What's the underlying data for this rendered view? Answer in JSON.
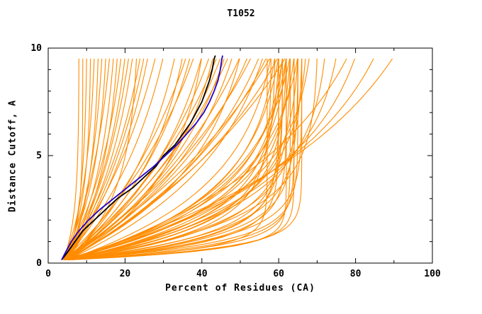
{
  "chart_data": {
    "type": "line",
    "title": "T1052",
    "xlabel": "Percent of Residues (CA)",
    "ylabel": "Distance Cutoff, A",
    "xlim": [
      0,
      100
    ],
    "ylim": [
      0,
      10
    ],
    "x_ticks": [
      0,
      20,
      40,
      60,
      80,
      100
    ],
    "x_minor_ticks": [
      10,
      30,
      50,
      70,
      90
    ],
    "y_ticks": [
      0,
      5,
      10
    ],
    "y_minor_ticks": [
      1,
      2,
      3,
      4,
      6,
      7,
      8,
      9
    ],
    "grid": false,
    "legend": "none",
    "colors": {
      "background": "#ffffff",
      "axis": "#000000",
      "models": "#ff8c00",
      "model_black": "#000000",
      "model_blue": "#2200cc"
    },
    "highlight_series": [
      {
        "name": "black-model-curve",
        "color_key": "model_black",
        "points": [
          [
            3.5,
            0.15
          ],
          [
            5,
            0.5
          ],
          [
            7,
            1
          ],
          [
            9,
            1.5
          ],
          [
            12,
            2
          ],
          [
            15,
            2.5
          ],
          [
            18,
            3
          ],
          [
            22,
            3.5
          ],
          [
            25,
            4
          ],
          [
            28,
            4.5
          ],
          [
            30,
            5
          ],
          [
            33,
            5.5
          ],
          [
            35,
            6
          ],
          [
            37,
            6.5
          ],
          [
            38.5,
            7
          ],
          [
            40,
            7.5
          ],
          [
            41,
            8
          ],
          [
            42,
            8.5
          ],
          [
            42.7,
            9
          ],
          [
            43.2,
            9.5
          ],
          [
            43.5,
            9.65
          ]
        ]
      },
      {
        "name": "blue-model-curve",
        "color_key": "model_blue",
        "points": [
          [
            3.5,
            0.15
          ],
          [
            4.5,
            0.5
          ],
          [
            6,
            1
          ],
          [
            8,
            1.5
          ],
          [
            10.5,
            2
          ],
          [
            13.5,
            2.5
          ],
          [
            17,
            3
          ],
          [
            20.5,
            3.5
          ],
          [
            24,
            4
          ],
          [
            27.5,
            4.5
          ],
          [
            30.5,
            5
          ],
          [
            33.5,
            5.5
          ],
          [
            36,
            6
          ],
          [
            38.5,
            6.5
          ],
          [
            40.5,
            7
          ],
          [
            42,
            7.5
          ],
          [
            43.2,
            8
          ],
          [
            44.2,
            8.5
          ],
          [
            44.8,
            9
          ],
          [
            45.2,
            9.5
          ],
          [
            45.4,
            9.65
          ]
        ]
      }
    ],
    "model_curves": {
      "color_key": "models",
      "param_format": "[x_percent_at_cutoff_10, curvature_tau, x_percent_at_cutoff_0]",
      "curves": [
        [
          60,
          1.0,
          4
        ],
        [
          61,
          1.2,
          5
        ],
        [
          62,
          0.9,
          4
        ],
        [
          63,
          1.5,
          5
        ],
        [
          64,
          1.1,
          6
        ],
        [
          65,
          1.3,
          4
        ],
        [
          60,
          2.0,
          5
        ],
        [
          61,
          2.4,
          4
        ],
        [
          62,
          1.8,
          6
        ],
        [
          63,
          2.2,
          5
        ],
        [
          64,
          2.6,
          4
        ],
        [
          65,
          2.1,
          5
        ],
        [
          59,
          1.6,
          4
        ],
        [
          58,
          1.4,
          5
        ],
        [
          66,
          1.7,
          5
        ],
        [
          67,
          2.3,
          6
        ],
        [
          62,
          3.0,
          4
        ],
        [
          63,
          3.4,
          5
        ],
        [
          61,
          2.8,
          5
        ],
        [
          60,
          3.2,
          6
        ],
        [
          64,
          0.7,
          5
        ],
        [
          65,
          0.8,
          4
        ],
        [
          63,
          0.6,
          5
        ],
        [
          66,
          1.0,
          5
        ],
        [
          59,
          2.9,
          4
        ],
        [
          58,
          3.5,
          5
        ],
        [
          62,
          2.5,
          4
        ],
        [
          61,
          1.1,
          6
        ],
        [
          60,
          0.8,
          5
        ],
        [
          65,
          3.1,
          4
        ],
        [
          57,
          0.5,
          4
        ],
        [
          62,
          0.45,
          5
        ],
        [
          66,
          0.55,
          5
        ],
        [
          64,
          0.5,
          6
        ],
        [
          35,
          5,
          4
        ],
        [
          40,
          6,
          5
        ],
        [
          45,
          7,
          4
        ],
        [
          50,
          8,
          5
        ],
        [
          55,
          6.5,
          5
        ],
        [
          48,
          5.5,
          4
        ],
        [
          42,
          7.5,
          5
        ],
        [
          38,
          8.5,
          4
        ],
        [
          52,
          7,
          5
        ],
        [
          58,
          9,
          4
        ],
        [
          60,
          8,
          5
        ],
        [
          62,
          9.5,
          5
        ],
        [
          46,
          6,
          4
        ],
        [
          36,
          9,
          5
        ],
        [
          30,
          7,
          4
        ],
        [
          33,
          6,
          5
        ],
        [
          44,
          8,
          4
        ],
        [
          56,
          5,
          5
        ],
        [
          50,
          4.5,
          4
        ],
        [
          40,
          4,
          5
        ],
        [
          47,
          9,
          5
        ],
        [
          53,
          8.5,
          4
        ],
        [
          57,
          7.5,
          5
        ],
        [
          43,
          5,
          4
        ],
        [
          37,
          6.5,
          5
        ],
        [
          8,
          2,
          4
        ],
        [
          10,
          3,
          5
        ],
        [
          12,
          4,
          4
        ],
        [
          14,
          5,
          5
        ],
        [
          16,
          6,
          4
        ],
        [
          18,
          4.5,
          5
        ],
        [
          20,
          5.5,
          4
        ],
        [
          22,
          6.5,
          5
        ],
        [
          24,
          7,
          4
        ],
        [
          26,
          7.5,
          5
        ],
        [
          11,
          2.5,
          4
        ],
        [
          13,
          3.5,
          5
        ],
        [
          15,
          4,
          4
        ],
        [
          17,
          5,
          5
        ],
        [
          19,
          6,
          4
        ],
        [
          21,
          7,
          5
        ],
        [
          9,
          1.5,
          4
        ],
        [
          25,
          8,
          5
        ],
        [
          28,
          8.5,
          4
        ],
        [
          23,
          3,
          5
        ],
        [
          75,
          3,
          5
        ],
        [
          80,
          4,
          5
        ],
        [
          85,
          5,
          6
        ],
        [
          90,
          6,
          5
        ],
        [
          72,
          2.5,
          5
        ],
        [
          78,
          5.5,
          6
        ],
        [
          70,
          1.8,
          5
        ],
        [
          68,
          2.8,
          6
        ]
      ]
    }
  }
}
